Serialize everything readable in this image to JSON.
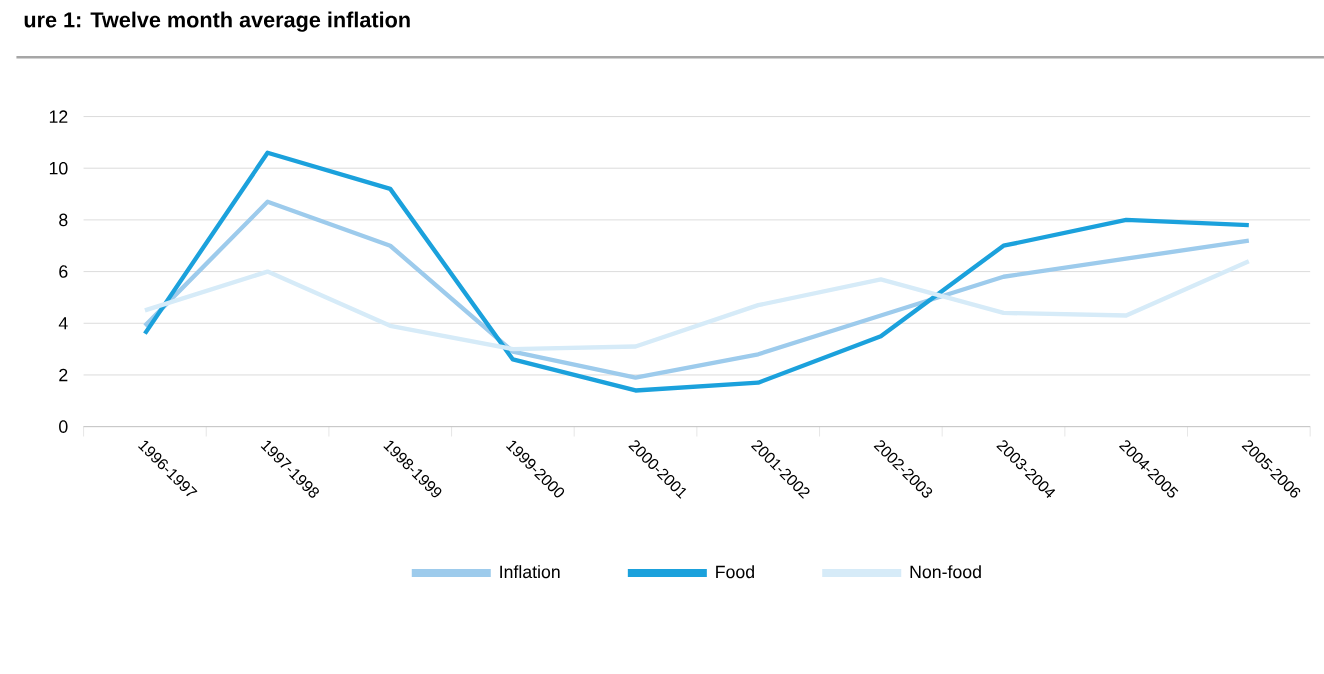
{
  "chart_data": {
    "type": "line",
    "title": "ure 1: Twelve month average inflation",
    "categories": [
      "1996-1997",
      "1997-1998",
      "1998-1999",
      "1999-2000",
      "2000-2001",
      "2001-2002",
      "2002-2003",
      "2003-2004",
      "2004-2005",
      "2005-2006"
    ],
    "series": [
      {
        "name": "Inflation",
        "color": "#9dcbec",
        "values": [
          3.9,
          8.7,
          7.0,
          2.9,
          1.9,
          2.8,
          4.3,
          5.8,
          6.5,
          7.2
        ]
      },
      {
        "name": "Food",
        "color": "#1ba1dc",
        "values": [
          3.6,
          10.6,
          9.2,
          2.6,
          1.4,
          1.7,
          3.5,
          7.0,
          8.0,
          7.8
        ]
      },
      {
        "name": "Non-food",
        "color": "#d6ebf8",
        "values": [
          4.5,
          6.0,
          3.9,
          3.0,
          3.1,
          4.7,
          5.7,
          4.4,
          4.3,
          6.4
        ]
      }
    ],
    "ylim": [
      0,
      12
    ],
    "yticks": [
      0,
      2,
      4,
      6,
      8,
      10,
      12
    ],
    "grid": "y",
    "legend": "bottom",
    "marker": "none",
    "line_style": "solid"
  }
}
